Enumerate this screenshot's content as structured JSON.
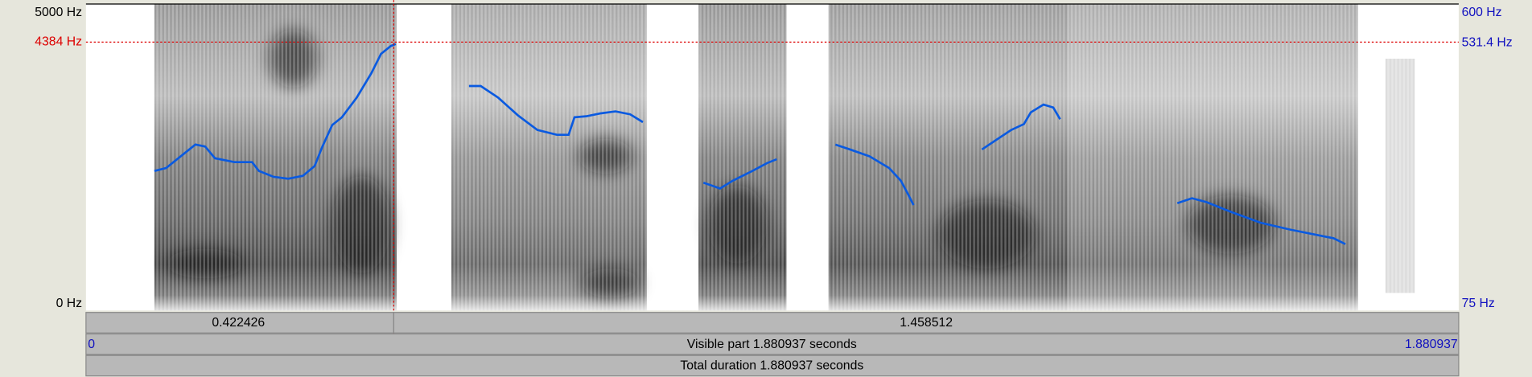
{
  "spectrogram": {
    "left_axis": {
      "top": "5000 Hz",
      "cursor": "4384 Hz",
      "bottom": "0 Hz"
    },
    "right_axis": {
      "top": "600 Hz",
      "cursor": "531.4 Hz",
      "bottom": "75 Hz"
    }
  },
  "selection_bar": {
    "left": "0.422426",
    "right": "1.458512"
  },
  "visible_bar": {
    "start": "0",
    "label": "Visible part 1.880937 seconds",
    "end": "1.880937"
  },
  "total_bar": {
    "label": "Total duration 1.880937 seconds"
  }
}
